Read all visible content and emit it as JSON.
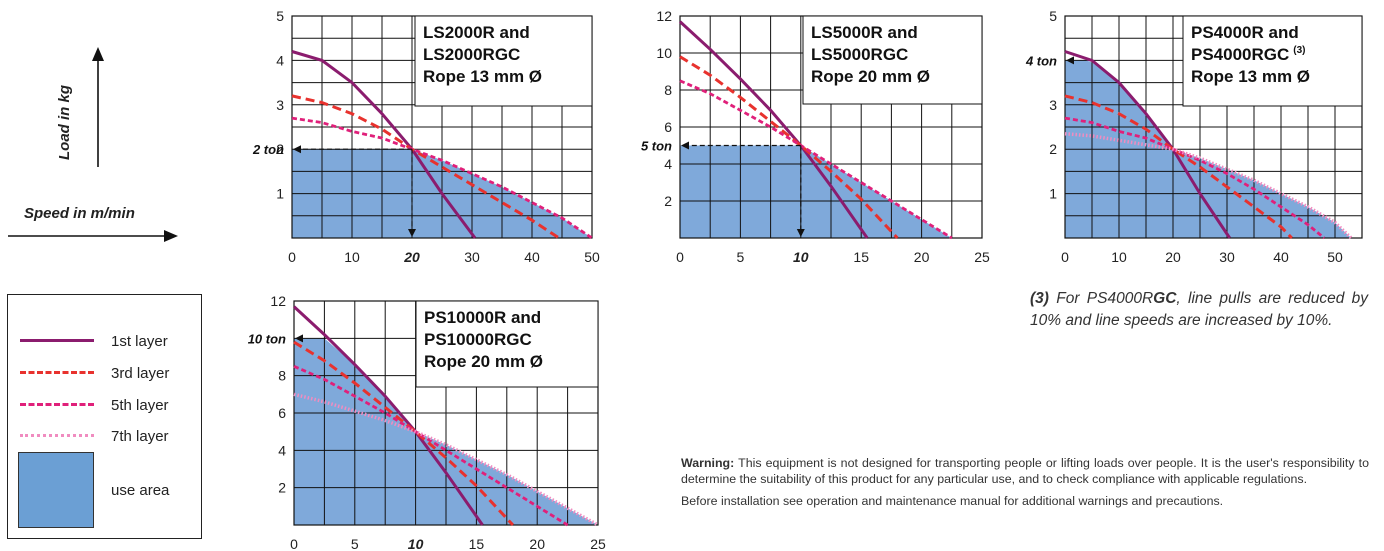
{
  "axis_hints": {
    "load": "Load in kg",
    "speed": "Speed in m/min"
  },
  "legend": {
    "items": [
      {
        "label": "1st layer",
        "color": "#8b1c6e",
        "style": "solid"
      },
      {
        "label": "3rd layer",
        "color": "#e8322e",
        "style": "dashed"
      },
      {
        "label": "5th layer",
        "color": "#e0207a",
        "style": "dashed-short"
      },
      {
        "label": "7th layer",
        "color": "#f08cc0",
        "style": "dotted"
      }
    ],
    "use_area": {
      "label": "use area",
      "color": "#6b9fd4"
    }
  },
  "note": {
    "number": "(3)",
    "text_before": " For PS4000R",
    "bold": "GC",
    "text_after": ", line pulls are reduced by 10% and line speeds are increased by 10%."
  },
  "warning": {
    "label": "Warning:",
    "text": " This equipment is not designed for transporting people or lifting loads over people. It is the user's responsibility to determine the suitability of this product for any particular use, and to check compliance with applicable regulations.",
    "text2": "Before installation see operation and maintenance manual for additional warnings and precautions."
  },
  "chart_data": [
    {
      "type": "line",
      "title": [
        "LS2000R and",
        "LS2000RGC",
        "Rope 13 mm Ø"
      ],
      "title_sup": "",
      "xticks": [
        "0",
        "10",
        "20",
        "30",
        "40",
        "50"
      ],
      "xtick_values": [
        0,
        10,
        20,
        30,
        40,
        50
      ],
      "highlight_xtick": "20",
      "yticks": [
        "1",
        "2",
        "3",
        "4",
        "5"
      ],
      "ytick_values": [
        1,
        2,
        3,
        4,
        5
      ],
      "ylabel_special": "2 ton",
      "ylabel_special_value": 2,
      "xlim": [
        0,
        50
      ],
      "ylim": [
        0,
        5
      ],
      "marker_x": 20,
      "marker_y": 2,
      "use_area_note": "capped at 2 ton",
      "series": [
        {
          "name": "1st layer",
          "x": [
            0,
            5,
            10,
            15,
            20,
            25,
            30.5
          ],
          "y": [
            4.2,
            4.0,
            3.5,
            2.8,
            2.0,
            1.0,
            0.0
          ]
        },
        {
          "name": "3rd layer",
          "x": [
            0,
            5,
            10,
            15,
            20,
            25,
            30,
            35,
            40,
            44.5
          ],
          "y": [
            3.2,
            3.05,
            2.8,
            2.45,
            2.0,
            1.6,
            1.2,
            0.8,
            0.4,
            0.0
          ]
        },
        {
          "name": "5th layer",
          "x": [
            0,
            5,
            10,
            15,
            20,
            25,
            30,
            35,
            40,
            45,
            50
          ],
          "y": [
            2.7,
            2.6,
            2.4,
            2.25,
            2.0,
            1.75,
            1.45,
            1.15,
            0.8,
            0.45,
            0.0
          ]
        }
      ],
      "use_area": {
        "x": [
          0,
          5,
          10,
          15,
          18.5,
          20,
          25,
          30,
          35,
          40,
          45,
          50
        ],
        "y": [
          2.0,
          2.0,
          2.0,
          2.0,
          2.0,
          2.0,
          1.75,
          1.45,
          1.15,
          0.8,
          0.45,
          0.0
        ]
      }
    },
    {
      "type": "line",
      "title": [
        "LS5000R and",
        "LS5000RGC",
        "Rope 20 mm Ø"
      ],
      "title_sup": "",
      "xticks": [
        "0",
        "5",
        "10",
        "15",
        "20",
        "25"
      ],
      "xtick_values": [
        0,
        5,
        10,
        15,
        20,
        25
      ],
      "highlight_xtick": "10",
      "yticks": [
        "2",
        "4",
        "6",
        "8",
        "10",
        "12"
      ],
      "ytick_values": [
        2,
        4,
        6,
        8,
        10,
        12
      ],
      "ylabel_special": "5 ton",
      "ylabel_special_value": 5,
      "xlim": [
        0,
        25
      ],
      "ylim": [
        0,
        12
      ],
      "marker_x": 10,
      "marker_y": 5,
      "series": [
        {
          "name": "1st layer",
          "x": [
            0,
            2.5,
            5,
            7.5,
            10,
            12.5,
            15.5
          ],
          "y": [
            11.7,
            10.2,
            8.6,
            6.9,
            5.0,
            2.8,
            0.0
          ]
        },
        {
          "name": "3rd layer",
          "x": [
            0,
            2.5,
            5,
            7.5,
            10,
            12.5,
            15,
            18
          ],
          "y": [
            9.8,
            8.8,
            7.6,
            6.3,
            5.0,
            3.6,
            2.1,
            0.0
          ]
        },
        {
          "name": "5th layer",
          "x": [
            0,
            2.5,
            5,
            7.5,
            10,
            12.5,
            15,
            17.5,
            20,
            22.5
          ],
          "y": [
            8.5,
            7.8,
            6.9,
            6.0,
            5.0,
            4.0,
            3.0,
            2.0,
            1.0,
            0.0
          ]
        }
      ],
      "use_area": {
        "x": [
          0,
          9,
          10,
          12.5,
          15,
          17.5,
          20,
          22.5
        ],
        "y": [
          5.0,
          5.0,
          5.0,
          4.0,
          3.0,
          2.0,
          1.0,
          0.0
        ]
      }
    },
    {
      "type": "line",
      "title": [
        "PS4000R and",
        "PS4000RGC",
        "Rope 13 mm Ø"
      ],
      "title_sup": "(3)",
      "xticks": [
        "0",
        "10",
        "20",
        "30",
        "40",
        "50"
      ],
      "xtick_values": [
        0,
        10,
        20,
        30,
        40,
        50
      ],
      "highlight_xtick": "",
      "yticks": [
        "1",
        "2",
        "3",
        "5"
      ],
      "ytick_values": [
        1,
        2,
        3,
        5
      ],
      "ylabel_special": "4 ton",
      "ylabel_special_value": 4,
      "xlim": [
        0,
        50
      ],
      "ylim": [
        0,
        5
      ],
      "marker_x": -1,
      "marker_y": 4,
      "series": [
        {
          "name": "1st layer",
          "x": [
            0,
            5,
            10,
            15,
            20,
            25,
            30.5
          ],
          "y": [
            4.2,
            4.0,
            3.5,
            2.8,
            2.0,
            1.0,
            0.0
          ]
        },
        {
          "name": "3rd layer",
          "x": [
            0,
            5,
            10,
            15,
            20,
            25,
            30,
            35,
            40,
            42
          ],
          "y": [
            3.2,
            3.05,
            2.8,
            2.45,
            2.0,
            1.6,
            1.15,
            0.7,
            0.25,
            0.0
          ]
        },
        {
          "name": "5th layer",
          "x": [
            0,
            5,
            10,
            15,
            20,
            25,
            30,
            35,
            40,
            45,
            48
          ],
          "y": [
            2.7,
            2.6,
            2.4,
            2.25,
            2.0,
            1.75,
            1.45,
            1.1,
            0.7,
            0.3,
            0.0
          ]
        },
        {
          "name": "7th layer",
          "x": [
            0,
            5,
            10,
            15,
            20,
            25,
            30,
            35,
            40,
            45,
            50,
            53
          ],
          "y": [
            2.35,
            2.3,
            2.2,
            2.1,
            2.0,
            1.8,
            1.55,
            1.3,
            1.0,
            0.7,
            0.35,
            0.0
          ]
        }
      ],
      "use_area": {
        "x": [
          0,
          4,
          6,
          10,
          15,
          20,
          25,
          30,
          35,
          40,
          45,
          50,
          53
        ],
        "y": [
          4.0,
          4.0,
          3.9,
          3.5,
          2.8,
          2.0,
          1.8,
          1.55,
          1.3,
          1.0,
          0.7,
          0.35,
          0.0
        ]
      }
    },
    {
      "type": "line",
      "title": [
        "PS10000R and",
        "PS10000RGC",
        "Rope 20 mm Ø"
      ],
      "title_sup": "",
      "xticks": [
        "0",
        "5",
        "10",
        "15",
        "20",
        "25"
      ],
      "xtick_values": [
        0,
        5,
        10,
        15,
        20,
        25
      ],
      "highlight_xtick": "10",
      "yticks": [
        "2",
        "4",
        "6",
        "8",
        "12"
      ],
      "ytick_values": [
        2,
        4,
        6,
        8,
        12
      ],
      "ylabel_special": "10 ton",
      "ylabel_special_value": 10,
      "xlim": [
        0,
        25
      ],
      "ylim": [
        0,
        12
      ],
      "marker_x": -1,
      "marker_y": 10,
      "series": [
        {
          "name": "1st layer",
          "x": [
            0,
            2.5,
            5,
            7.5,
            10,
            12.5,
            15.5
          ],
          "y": [
            11.7,
            10.2,
            8.6,
            6.9,
            5.0,
            2.8,
            0.0
          ]
        },
        {
          "name": "3rd layer",
          "x": [
            0,
            2.5,
            5,
            7.5,
            10,
            12.5,
            15,
            18
          ],
          "y": [
            9.8,
            8.8,
            7.6,
            6.3,
            5.0,
            3.6,
            2.1,
            0.0
          ]
        },
        {
          "name": "5th layer",
          "x": [
            0,
            2.5,
            5,
            7.5,
            10,
            12.5,
            15,
            17.5,
            20,
            22.5
          ],
          "y": [
            8.5,
            7.8,
            6.9,
            6.0,
            5.0,
            4.0,
            3.0,
            2.0,
            1.0,
            0.0
          ]
        },
        {
          "name": "7th layer",
          "x": [
            0,
            2.5,
            5,
            7.5,
            10,
            12.5,
            15,
            17.5,
            20,
            22.5,
            25
          ],
          "y": [
            7.0,
            6.6,
            6.1,
            5.6,
            5.0,
            4.3,
            3.5,
            2.7,
            1.8,
            0.9,
            0.0
          ]
        }
      ],
      "use_area": {
        "x": [
          0,
          2.5,
          5,
          7.5,
          10,
          12.5,
          15,
          17.5,
          20,
          22.5,
          25
        ],
        "y": [
          10.0,
          10.0,
          8.6,
          6.9,
          5.0,
          4.3,
          3.5,
          2.7,
          1.8,
          0.9,
          0.0
        ]
      }
    }
  ]
}
